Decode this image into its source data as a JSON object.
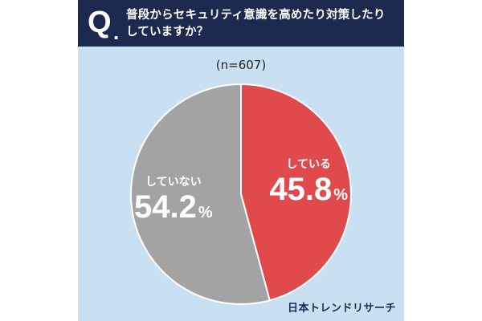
{
  "question": {
    "mark": "Q",
    "dot": ".",
    "line1": "普段からセキュリティ意識を高めたり対策したり",
    "line2": "していますか？"
  },
  "sample_size": "(n=607)",
  "brand": "日本トレンドリサーチ",
  "colors": {
    "header_bg": "#1b2a4e",
    "panel_bg": "#c9dff2",
    "yes": "#e04a4c",
    "no": "#a3a3a3",
    "label_text": "#ffffff"
  },
  "chart_data": {
    "type": "pie",
    "slices": [
      {
        "label": "している",
        "value": 45.8,
        "value_text": "45.8",
        "unit": "%",
        "color": "#e04a4c"
      },
      {
        "label": "していない",
        "value": 54.2,
        "value_text": "54.2",
        "unit": "%",
        "color": "#a3a3a3"
      }
    ],
    "start": "12 o'clock",
    "direction": "clockwise"
  }
}
